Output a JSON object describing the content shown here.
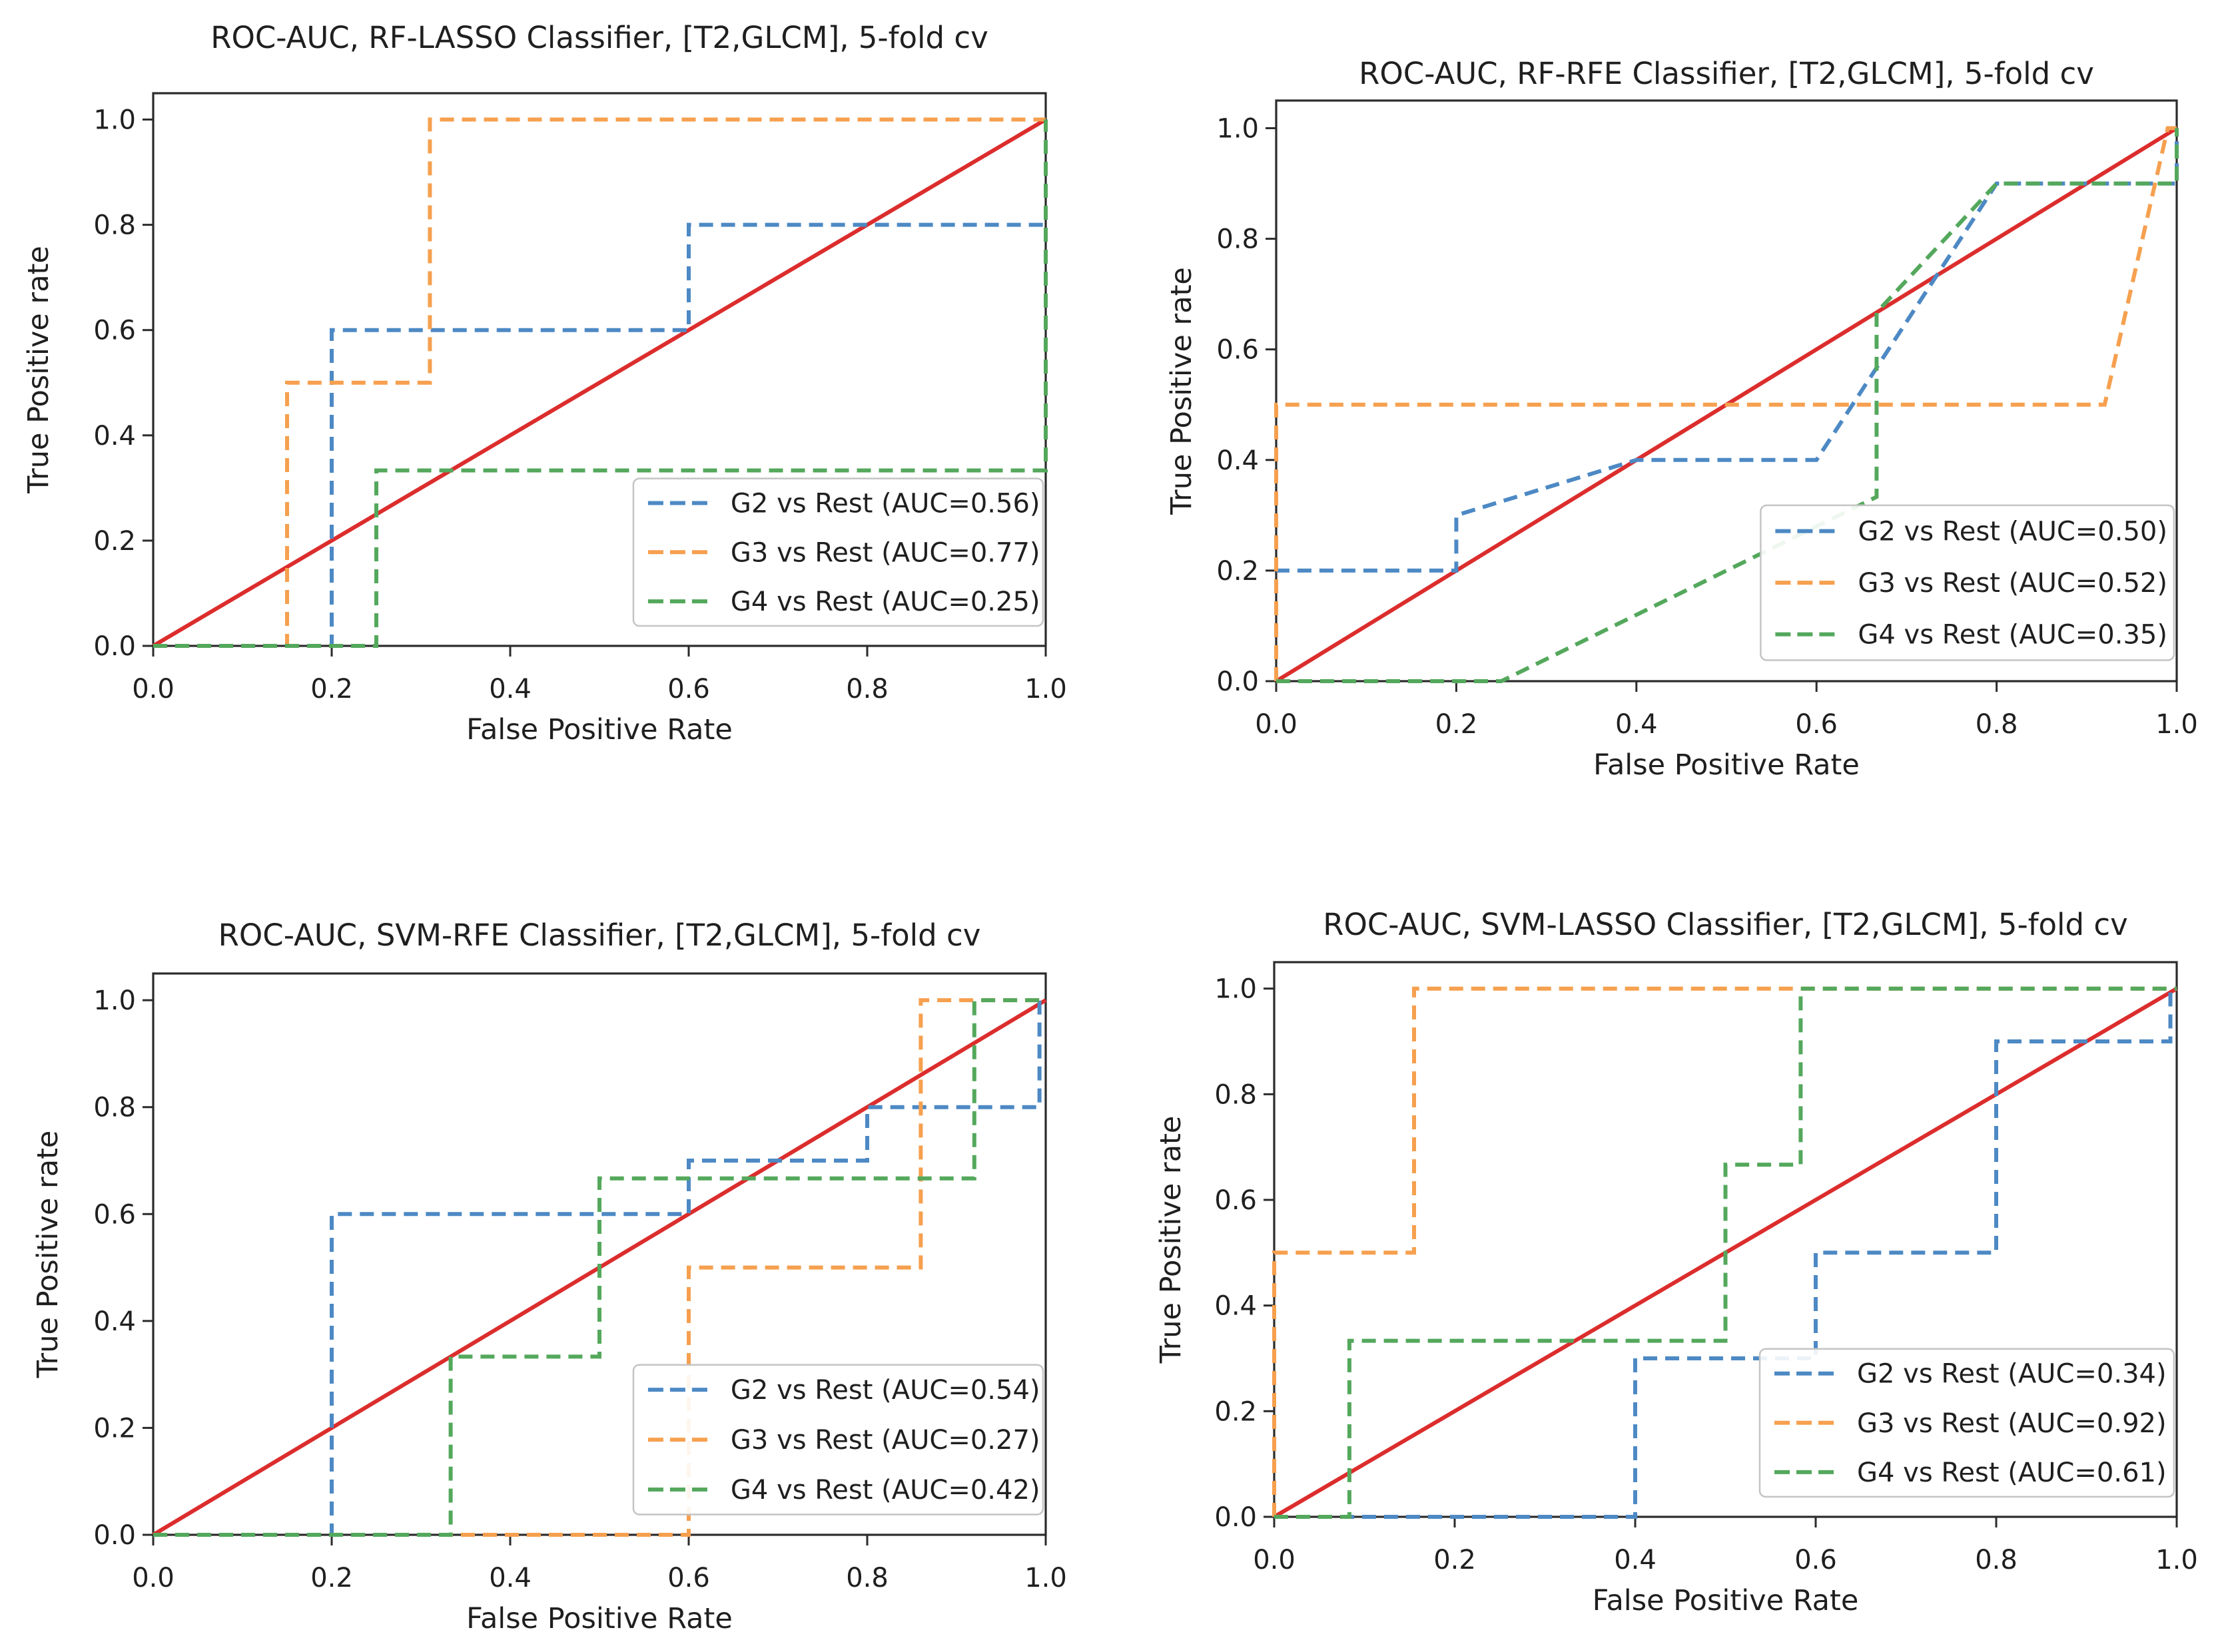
{
  "page": {
    "background": "#ffffff",
    "figure_kind": "2x2 grid of ROC-AUC plots"
  },
  "colors": {
    "g2_blue": "#4d89c4",
    "g3_orange": "#f6a04f",
    "g4_green": "#54a85c",
    "chance_red": "#dc2d2d",
    "axis_text": "#1f1f1f",
    "spine": "#2b2b2b",
    "legend_border": "#c4c4c4",
    "legend_fill": "#ffffff"
  },
  "chart_data": [
    {
      "type": "line",
      "title": "ROC-AUC, RF-LASSO Classifier, [T2,GLCM], 5-fold cv",
      "xlabel": "False Positive Rate",
      "ylabel": "True Positive rate",
      "xlim": [
        0.0,
        1.0
      ],
      "ylim": [
        0.0,
        1.05
      ],
      "xticks": [
        "0.0",
        "0.2",
        "0.4",
        "0.6",
        "0.8",
        "1.0"
      ],
      "yticks": [
        "0.0",
        "0.2",
        "0.4",
        "0.6",
        "0.8",
        "1.0"
      ],
      "grid": false,
      "legend_position": "lower right",
      "series": [
        {
          "name": "G2 vs Rest (AUC=0.56)",
          "group": "G2",
          "auc": 0.56,
          "color_key": "g2_blue",
          "points": [
            [
              0,
              0
            ],
            [
              0.2,
              0
            ],
            [
              0.2,
              0.6
            ],
            [
              0.6,
              0.6
            ],
            [
              0.6,
              0.8
            ],
            [
              1,
              0.8
            ],
            [
              1,
              1
            ]
          ]
        },
        {
          "name": "G3 vs Rest (AUC=0.77)",
          "group": "G3",
          "auc": 0.77,
          "color_key": "g3_orange",
          "points": [
            [
              0,
              0
            ],
            [
              0.15,
              0
            ],
            [
              0.15,
              0.5
            ],
            [
              0.31,
              0.5
            ],
            [
              0.31,
              1
            ],
            [
              1,
              1
            ]
          ]
        },
        {
          "name": "G4 vs Rest (AUC=0.25)",
          "group": "G4",
          "auc": 0.25,
          "color_key": "g4_green",
          "points": [
            [
              0,
              0
            ],
            [
              0.25,
              0
            ],
            [
              0.25,
              0.3333
            ],
            [
              1,
              0.3333
            ],
            [
              1,
              1
            ]
          ]
        }
      ],
      "chance_line": {
        "color_key": "chance_red",
        "points": [
          [
            0,
            0
          ],
          [
            1,
            1
          ]
        ]
      }
    },
    {
      "type": "line",
      "title": "ROC-AUC, RF-RFE Classifier, [T2,GLCM], 5-fold cv",
      "xlabel": "False Positive Rate",
      "ylabel": "True Positive rate",
      "xlim": [
        0.0,
        1.0
      ],
      "ylim": [
        0.0,
        1.05
      ],
      "xticks": [
        "0.0",
        "0.2",
        "0.4",
        "0.6",
        "0.8",
        "1.0"
      ],
      "yticks": [
        "0.0",
        "0.2",
        "0.4",
        "0.6",
        "0.8",
        "1.0"
      ],
      "grid": false,
      "legend_position": "lower right",
      "series": [
        {
          "name": "G2 vs Rest (AUC=0.50)",
          "group": "G2",
          "auc": 0.5,
          "color_key": "g2_blue",
          "points": [
            [
              0,
              0
            ],
            [
              0,
              0.2
            ],
            [
              0.2,
              0.2
            ],
            [
              0.2,
              0.3
            ],
            [
              0.4,
              0.4
            ],
            [
              0.6,
              0.4
            ],
            [
              0.8,
              0.9
            ],
            [
              1,
              0.9
            ],
            [
              1,
              1
            ]
          ]
        },
        {
          "name": "G3 vs Rest (AUC=0.52)",
          "group": "G3",
          "auc": 0.52,
          "color_key": "g3_orange",
          "points": [
            [
              0,
              0
            ],
            [
              0,
              0.5
            ],
            [
              0.92,
              0.5
            ],
            [
              0.99,
              1
            ],
            [
              1,
              1
            ]
          ]
        },
        {
          "name": "G4 vs Rest (AUC=0.35)",
          "group": "G4",
          "auc": 0.35,
          "color_key": "g4_green",
          "points": [
            [
              0,
              0
            ],
            [
              0.25,
              0
            ],
            [
              0.6667,
              0.3333
            ],
            [
              0.6667,
              0.6667
            ],
            [
              0.8,
              0.9
            ],
            [
              1,
              0.9
            ],
            [
              1,
              1
            ]
          ]
        }
      ],
      "chance_line": {
        "color_key": "chance_red",
        "points": [
          [
            0,
            0
          ],
          [
            1,
            1
          ]
        ]
      }
    },
    {
      "type": "line",
      "title": "ROC-AUC, SVM-RFE Classifier, [T2,GLCM], 5-fold cv",
      "xlabel": "False Positive Rate",
      "ylabel": "True Positive rate",
      "xlim": [
        0.0,
        1.0
      ],
      "ylim": [
        0.0,
        1.05
      ],
      "xticks": [
        "0.0",
        "0.2",
        "0.4",
        "0.6",
        "0.8",
        "1.0"
      ],
      "yticks": [
        "0.0",
        "0.2",
        "0.4",
        "0.6",
        "0.8",
        "1.0"
      ],
      "grid": false,
      "legend_position": "lower right",
      "series": [
        {
          "name": "G2 vs Rest (AUC=0.54)",
          "group": "G2",
          "auc": 0.54,
          "color_key": "g2_blue",
          "points": [
            [
              0,
              0
            ],
            [
              0.2,
              0
            ],
            [
              0.2,
              0.6
            ],
            [
              0.6,
              0.6
            ],
            [
              0.6,
              0.7
            ],
            [
              0.8,
              0.7
            ],
            [
              0.8,
              0.8
            ],
            [
              0.993,
              0.8
            ],
            [
              0.993,
              1
            ],
            [
              1,
              1
            ]
          ]
        },
        {
          "name": "G3 vs Rest (AUC=0.27)",
          "group": "G3",
          "auc": 0.27,
          "color_key": "g3_orange",
          "points": [
            [
              0,
              0
            ],
            [
              0.6,
              0
            ],
            [
              0.6,
              0.5
            ],
            [
              0.86,
              0.5
            ],
            [
              0.86,
              1
            ],
            [
              1,
              1
            ]
          ]
        },
        {
          "name": "G4 vs Rest (AUC=0.42)",
          "group": "G4",
          "auc": 0.42,
          "color_key": "g4_green",
          "points": [
            [
              0,
              0
            ],
            [
              0.3333,
              0
            ],
            [
              0.3333,
              0.3333
            ],
            [
              0.5,
              0.3333
            ],
            [
              0.5,
              0.6667
            ],
            [
              0.92,
              0.6667
            ],
            [
              0.92,
              1
            ],
            [
              1,
              1
            ]
          ]
        }
      ],
      "chance_line": {
        "color_key": "chance_red",
        "points": [
          [
            0,
            0
          ],
          [
            1,
            1
          ]
        ]
      }
    },
    {
      "type": "line",
      "title": "ROC-AUC, SVM-LASSO Classifier, [T2,GLCM], 5-fold cv",
      "xlabel": "False Positive Rate",
      "ylabel": "True Positive rate",
      "xlim": [
        0.0,
        1.0
      ],
      "ylim": [
        0.0,
        1.05
      ],
      "xticks": [
        "0.0",
        "0.2",
        "0.4",
        "0.6",
        "0.8",
        "1.0"
      ],
      "yticks": [
        "0.0",
        "0.2",
        "0.4",
        "0.6",
        "0.8",
        "1.0"
      ],
      "grid": false,
      "legend_position": "lower right",
      "series": [
        {
          "name": "G2 vs Rest (AUC=0.34)",
          "group": "G2",
          "auc": 0.34,
          "color_key": "g2_blue",
          "points": [
            [
              0,
              0
            ],
            [
              0.4,
              0
            ],
            [
              0.4,
              0.3
            ],
            [
              0.6,
              0.3
            ],
            [
              0.6,
              0.5
            ],
            [
              0.8,
              0.5
            ],
            [
              0.8,
              0.9
            ],
            [
              0.993,
              0.9
            ],
            [
              0.993,
              1
            ],
            [
              1,
              1
            ]
          ]
        },
        {
          "name": "G3 vs Rest (AUC=0.92)",
          "group": "G3",
          "auc": 0.92,
          "color_key": "g3_orange",
          "points": [
            [
              0,
              0
            ],
            [
              0,
              0.5
            ],
            [
              0.155,
              0.5
            ],
            [
              0.155,
              1
            ],
            [
              1,
              1
            ]
          ]
        },
        {
          "name": "G4 vs Rest (AUC=0.61)",
          "group": "G4",
          "auc": 0.61,
          "color_key": "g4_green",
          "points": [
            [
              0,
              0
            ],
            [
              0.0833,
              0
            ],
            [
              0.0833,
              0.3333
            ],
            [
              0.5,
              0.3333
            ],
            [
              0.5,
              0.6667
            ],
            [
              0.5833,
              0.6667
            ],
            [
              0.5833,
              1
            ],
            [
              1,
              1
            ]
          ]
        }
      ],
      "chance_line": {
        "color_key": "chance_red",
        "points": [
          [
            0,
            0
          ],
          [
            1,
            1
          ]
        ]
      }
    }
  ]
}
